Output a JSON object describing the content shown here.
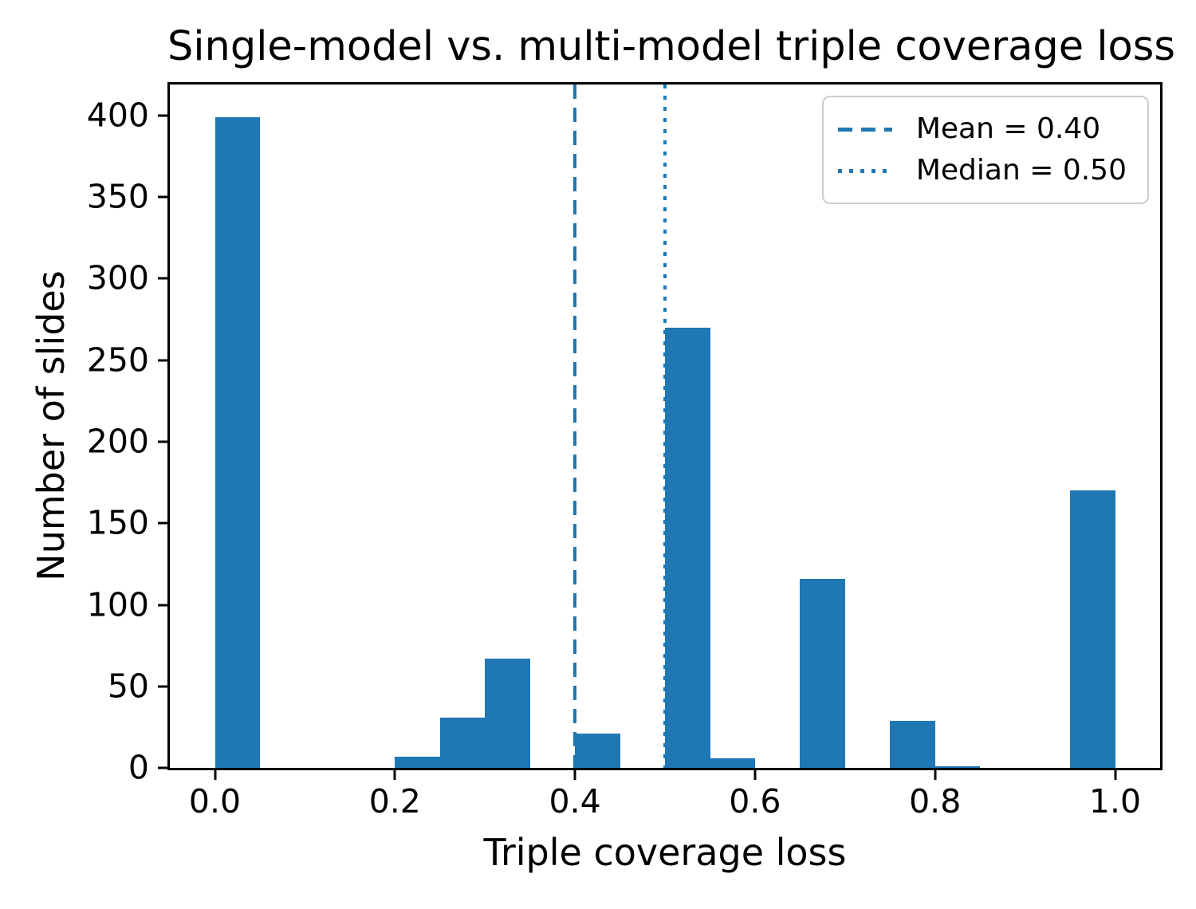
{
  "chart_data": {
    "type": "bar",
    "subtype": "histogram",
    "title": "Single-model vs. multi-model triple coverage loss",
    "xlabel": "Triple coverage loss",
    "ylabel": "Number of slides",
    "bin_edges": [
      0.0,
      0.05,
      0.1,
      0.15,
      0.2,
      0.25,
      0.3,
      0.35,
      0.4,
      0.45,
      0.5,
      0.55,
      0.6,
      0.65,
      0.7,
      0.75,
      0.8,
      0.85,
      0.9,
      0.95,
      1.0
    ],
    "counts": [
      399,
      0,
      0,
      0,
      7,
      31,
      67,
      0,
      21,
      0,
      270,
      6,
      0,
      116,
      0,
      29,
      1,
      0,
      0,
      170
    ],
    "bar_color": "#1f77b4",
    "xlim": [
      -0.05,
      1.05
    ],
    "ylim": [
      0,
      419
    ],
    "x_ticks": [
      0.0,
      0.2,
      0.4,
      0.6,
      0.8,
      1.0
    ],
    "x_tick_labels": [
      "0.0",
      "0.2",
      "0.4",
      "0.6",
      "0.8",
      "1.0"
    ],
    "y_ticks": [
      0,
      50,
      100,
      150,
      200,
      250,
      300,
      350,
      400
    ],
    "y_tick_labels": [
      "0",
      "50",
      "100",
      "150",
      "200",
      "250",
      "300",
      "350",
      "400"
    ],
    "grid": false,
    "legend_position": "upper right",
    "reference_lines": [
      {
        "name": "mean",
        "x": 0.4,
        "line_style": "dashed",
        "color": "#1f77b4",
        "label": "Mean = 0.40"
      },
      {
        "name": "median",
        "x": 0.5,
        "line_style": "dotted",
        "color": "#1f77b4",
        "label": "Median = 0.50"
      }
    ]
  }
}
